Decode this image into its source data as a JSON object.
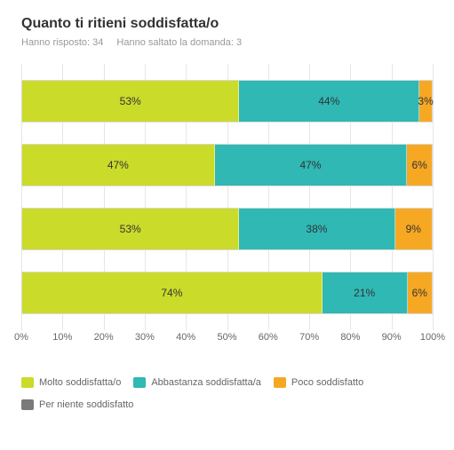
{
  "chart": {
    "type": "stacked-bar-horizontal",
    "title": "Quanto ti ritieni soddisfatta/o",
    "title_fontsize": 16,
    "subtitle_fontsize": 11,
    "subtitle_answered_label": "Hanno risposto:",
    "subtitle_answered_value": "34",
    "subtitle_skipped_label": "Hanno saltato la domanda:",
    "subtitle_skipped_value": "3",
    "background_color": "#ffffff",
    "grid_color": "#e6e6e6",
    "text_color": "#333333",
    "muted_text_color": "#999999",
    "axis_text_color": "#666666",
    "value_fontsize": 12,
    "axis_fontsize": 11,
    "xlim": [
      0,
      100
    ],
    "xtick_step": 10,
    "xticks": [
      "0%",
      "10%",
      "20%",
      "30%",
      "40%",
      "50%",
      "60%",
      "70%",
      "80%",
      "90%",
      "100%"
    ],
    "series": [
      {
        "key": "molto",
        "label": "Molto soddisfatta/o",
        "color": "#cbdb2a"
      },
      {
        "key": "abbastanza",
        "label": "Abbastanza soddisfatta/a",
        "color": "#2fb8b4"
      },
      {
        "key": "poco",
        "label": "Poco soddisfatto",
        "color": "#f7a823"
      },
      {
        "key": "niente",
        "label": "Per niente soddisfatto",
        "color": "#7a7a7a"
      }
    ],
    "rows": [
      {
        "values": {
          "molto": 53,
          "abbastanza": 44,
          "poco": 3,
          "niente": 0
        },
        "labels": {
          "molto": "53%",
          "abbastanza": "44%",
          "poco": "3%",
          "niente": ""
        }
      },
      {
        "values": {
          "molto": 47,
          "abbastanza": 47,
          "poco": 6,
          "niente": 0
        },
        "labels": {
          "molto": "47%",
          "abbastanza": "47%",
          "poco": "6%",
          "niente": ""
        }
      },
      {
        "values": {
          "molto": 53,
          "abbastanza": 38,
          "poco": 9,
          "niente": 0
        },
        "labels": {
          "molto": "53%",
          "abbastanza": "38%",
          "poco": "9%",
          "niente": ""
        }
      },
      {
        "values": {
          "molto": 74,
          "abbastanza": 21,
          "poco": 6,
          "niente": 0
        },
        "labels": {
          "molto": "74%",
          "abbastanza": "21%",
          "poco": "6%",
          "niente": ""
        }
      }
    ]
  }
}
